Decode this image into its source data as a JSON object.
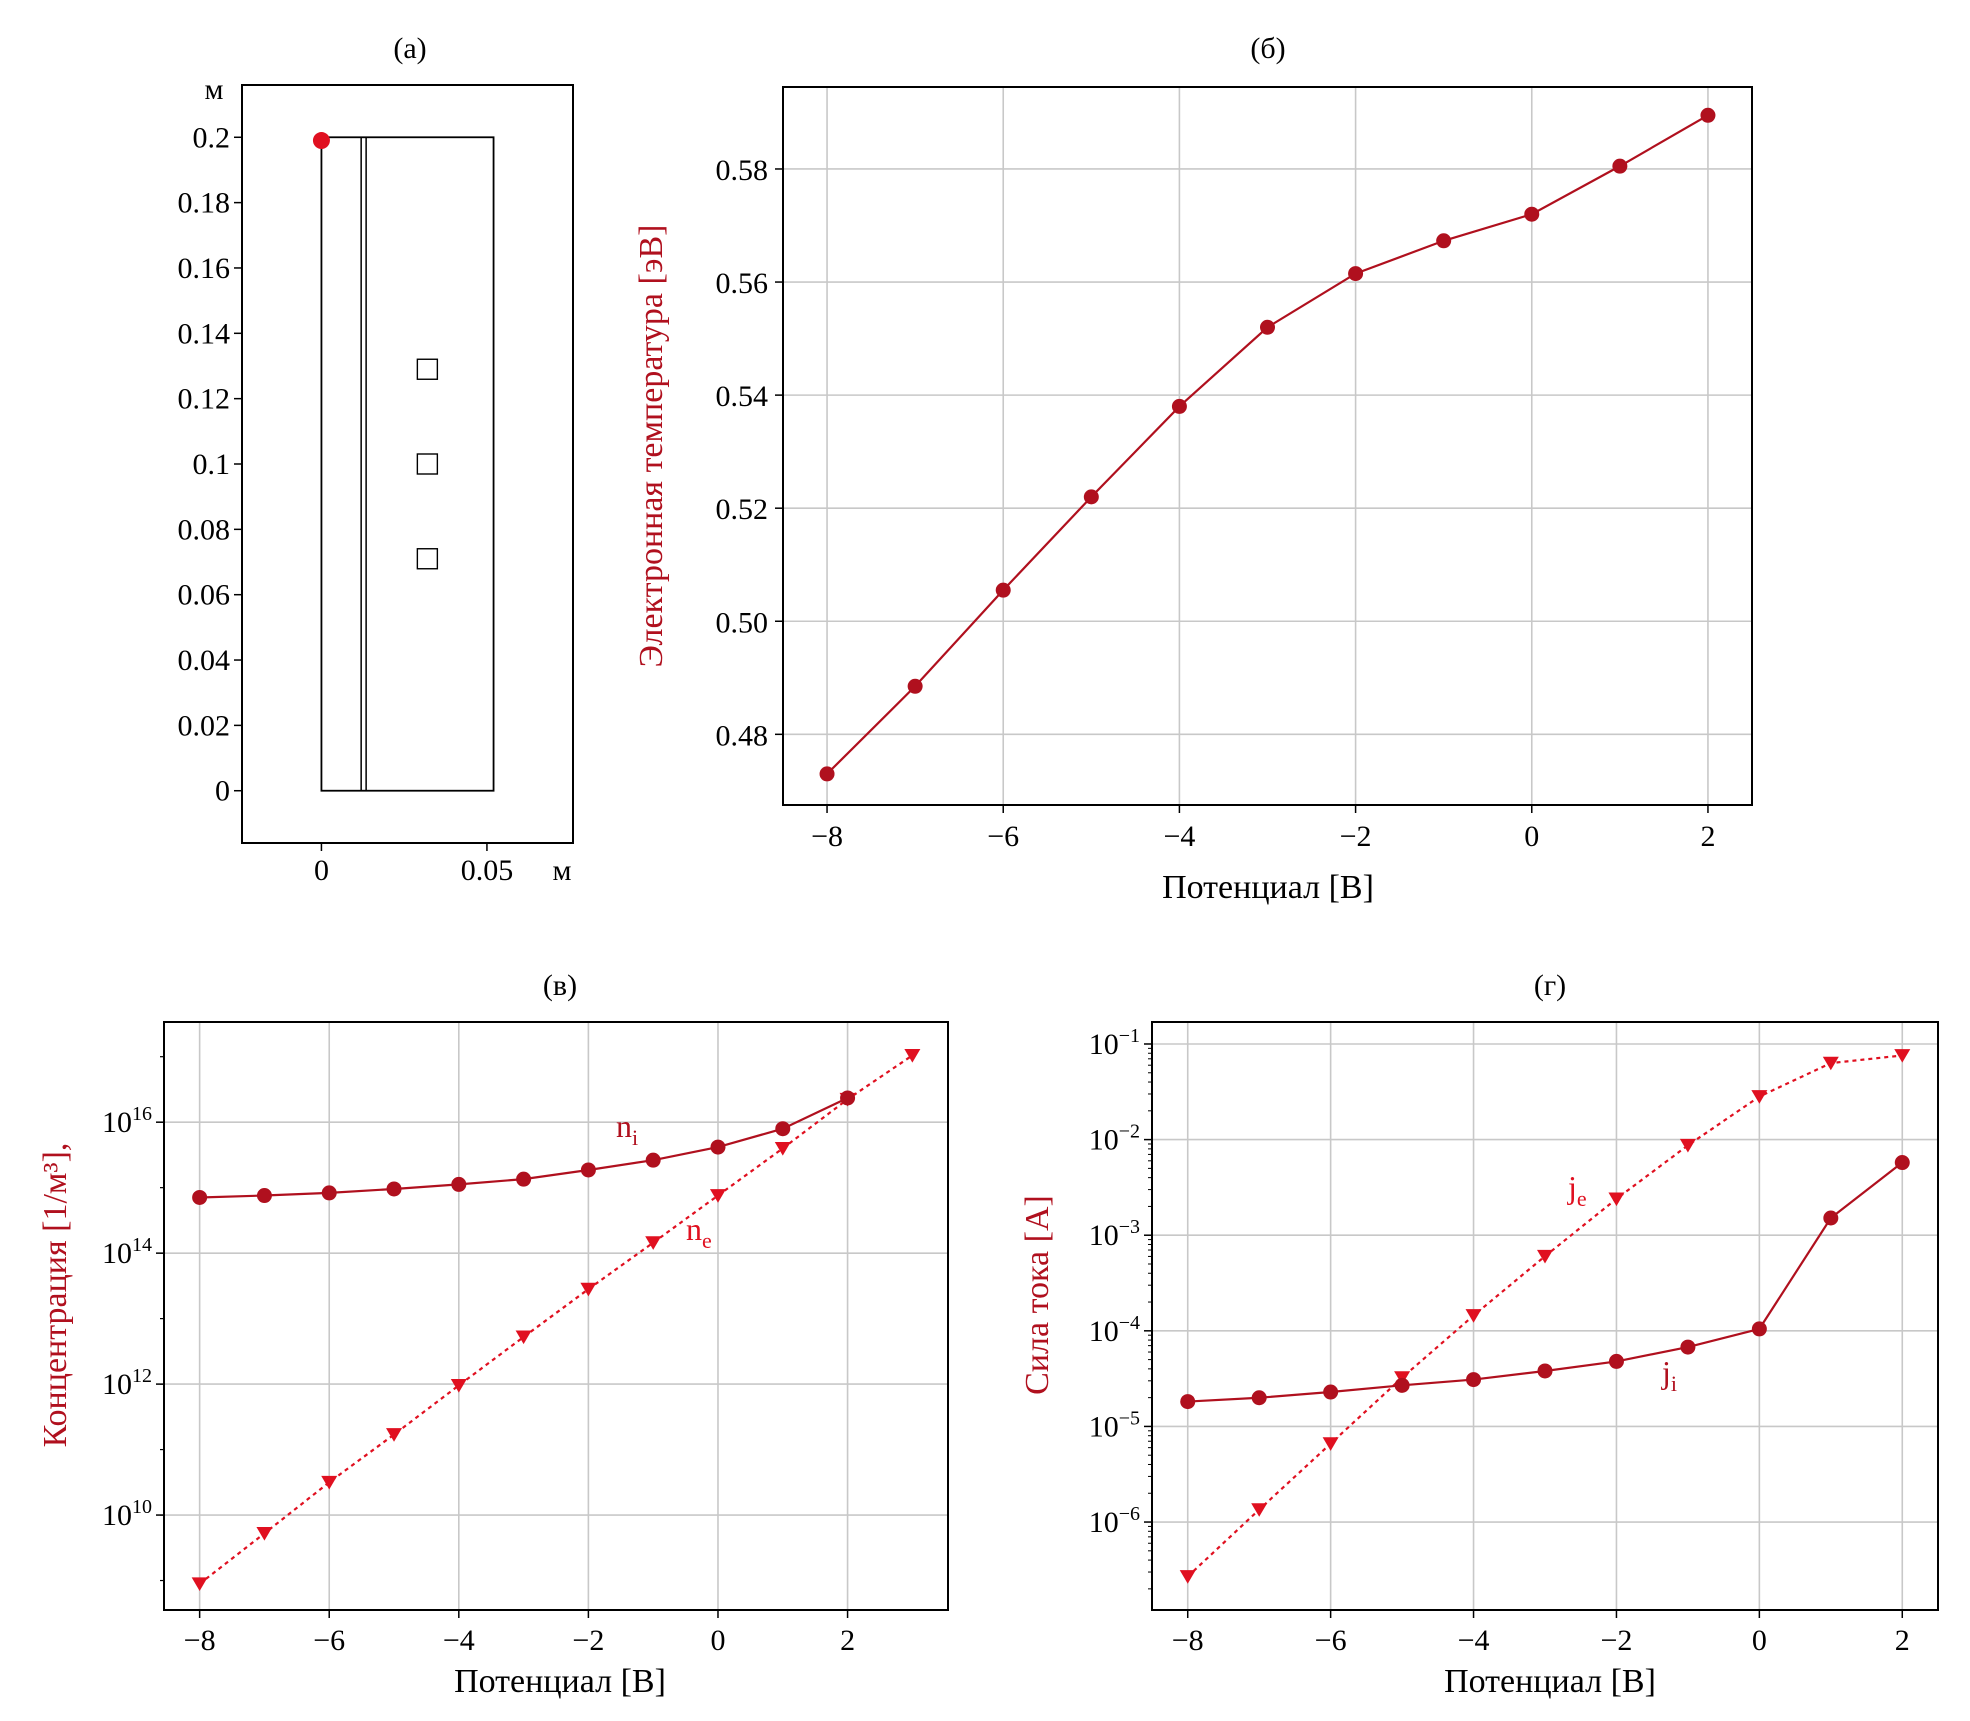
{
  "panels": {
    "a": {
      "label": "(а)",
      "unit_y": "м",
      "unit_x": "м",
      "yticks": [
        "0.2",
        "0.18",
        "0.16",
        "0.14",
        "0.12",
        "0.1",
        "0.08",
        "0.06",
        "0.04",
        "0.02",
        "0"
      ],
      "xticks": [
        "0",
        "0.05"
      ]
    },
    "b": {
      "label": "(б)",
      "xlabel": "Потенциал [В]",
      "ylabel": "Электронная температура [эВ]",
      "xticks": [
        "−8",
        "−6",
        "−4",
        "−2",
        "0",
        "2"
      ],
      "yticks": [
        "0.48",
        "0.50",
        "0.52",
        "0.54",
        "0.56",
        "0.58"
      ]
    },
    "c": {
      "label": "(в)",
      "xlabel": "Потенциал [В]",
      "ylabel": "Концентрация [1/м³],",
      "xticks": [
        "−8",
        "−6",
        "−4",
        "−2",
        "0",
        "2"
      ],
      "series_labels": {
        "ni": "n",
        "ni_sub": "i",
        "ne": "n",
        "ne_sub": "e"
      }
    },
    "d": {
      "label": "(г)",
      "xlabel": "Потенциал [В]",
      "ylabel": "Сила тока [А]",
      "xticks": [
        "−8",
        "−6",
        "−4",
        "−2",
        "0",
        "2"
      ],
      "series_labels": {
        "je": "j",
        "je_sub": "e",
        "ji": "j",
        "ji_sub": "i"
      }
    }
  },
  "colors": {
    "dark_red": "#b0101e",
    "red": "#e01020"
  },
  "chart_data": [
    {
      "panel": "a",
      "type": "diagram",
      "title": "(а)",
      "domain": {
        "x": [
          0,
          0.052
        ],
        "y": [
          0,
          0.2
        ]
      },
      "xlim": [
        -0.024,
        0.076
      ],
      "ylim": [
        -0.016,
        0.216
      ],
      "inner_lines_x": [
        0.012,
        0.0135
      ],
      "probe_squares": [
        {
          "x": 0.032,
          "y": 0.129
        },
        {
          "x": 0.032,
          "y": 0.1
        },
        {
          "x": 0.032,
          "y": 0.071
        }
      ],
      "marker_point": {
        "x": 0,
        "y": 0.199
      }
    },
    {
      "panel": "b",
      "type": "line",
      "title": "(б)",
      "xlabel": "Потенциал [В]",
      "ylabel": "Электронная температура [эВ]",
      "xlim": [
        -8.5,
        2.5
      ],
      "ylim": [
        0.4675,
        0.5945
      ],
      "grid": true,
      "x": [
        -8,
        -7,
        -6,
        -5,
        -4,
        -3,
        -2,
        -1,
        0,
        1,
        2
      ],
      "series": [
        {
          "values": [
            0.473,
            0.4885,
            0.5055,
            0.522,
            0.538,
            0.552,
            0.5615,
            0.5673,
            0.572,
            0.5805,
            0.5895
          ],
          "marker": "circle",
          "line": "solid"
        }
      ]
    },
    {
      "panel": "c",
      "type": "line",
      "title": "(в)",
      "xlabel": "Потенциал [В]",
      "ylabel": "Концентрация [1/м³],",
      "yscale": "log",
      "xlim": [
        -8.55,
        3.55
      ],
      "ylim_log10": [
        8.55,
        17.53
      ],
      "yticks_log10": [
        10,
        12,
        14,
        16
      ],
      "grid": true,
      "series": [
        {
          "name": "ni",
          "x": [
            -8,
            -7,
            -6,
            -5,
            -4,
            -3,
            -2,
            -1,
            0,
            1,
            2
          ],
          "log10_values": [
            14.85,
            14.88,
            14.92,
            14.98,
            15.05,
            15.13,
            15.27,
            15.42,
            15.62,
            15.9,
            16.37
          ],
          "marker": "circle",
          "line": "solid"
        },
        {
          "name": "ne",
          "x": [
            -8,
            -7,
            -6,
            -5,
            -4,
            -3,
            -2,
            -1,
            0,
            1,
            2,
            3
          ],
          "log10_values": [
            8.95,
            9.72,
            10.5,
            11.23,
            11.98,
            12.72,
            13.45,
            14.16,
            14.88,
            15.6,
            16.35,
            17.02
          ],
          "marker": "triangle-down",
          "line": "dotted"
        }
      ]
    },
    {
      "panel": "d",
      "type": "line",
      "title": "(г)",
      "xlabel": "Потенциал [В]",
      "ylabel": "Сила тока [А]",
      "yscale": "log",
      "xlim": [
        -8.5,
        2.5
      ],
      "ylim_log10": [
        -6.92,
        -0.77
      ],
      "yticks_log10": [
        -6,
        -5,
        -4,
        -3,
        -2,
        -1
      ],
      "grid": true,
      "series": [
        {
          "name": "je",
          "x": [
            -8,
            -7,
            -6,
            -5,
            -4,
            -3,
            -2,
            -1,
            0,
            1,
            2
          ],
          "log10_values": [
            -6.57,
            -5.87,
            -5.18,
            -4.49,
            -3.84,
            -3.22,
            -2.62,
            -2.06,
            -1.55,
            -1.2,
            -1.12
          ],
          "marker": "triangle-down",
          "line": "dotted"
        },
        {
          "name": "ji",
          "x": [
            -8,
            -7,
            -6,
            -5,
            -4,
            -3,
            -2,
            -1,
            0,
            1,
            2
          ],
          "log10_values": [
            -4.74,
            -4.7,
            -4.64,
            -4.57,
            -4.51,
            -4.42,
            -4.32,
            -4.17,
            -3.98,
            -2.82,
            -2.24
          ],
          "marker": "circle",
          "line": "solid"
        }
      ]
    }
  ]
}
